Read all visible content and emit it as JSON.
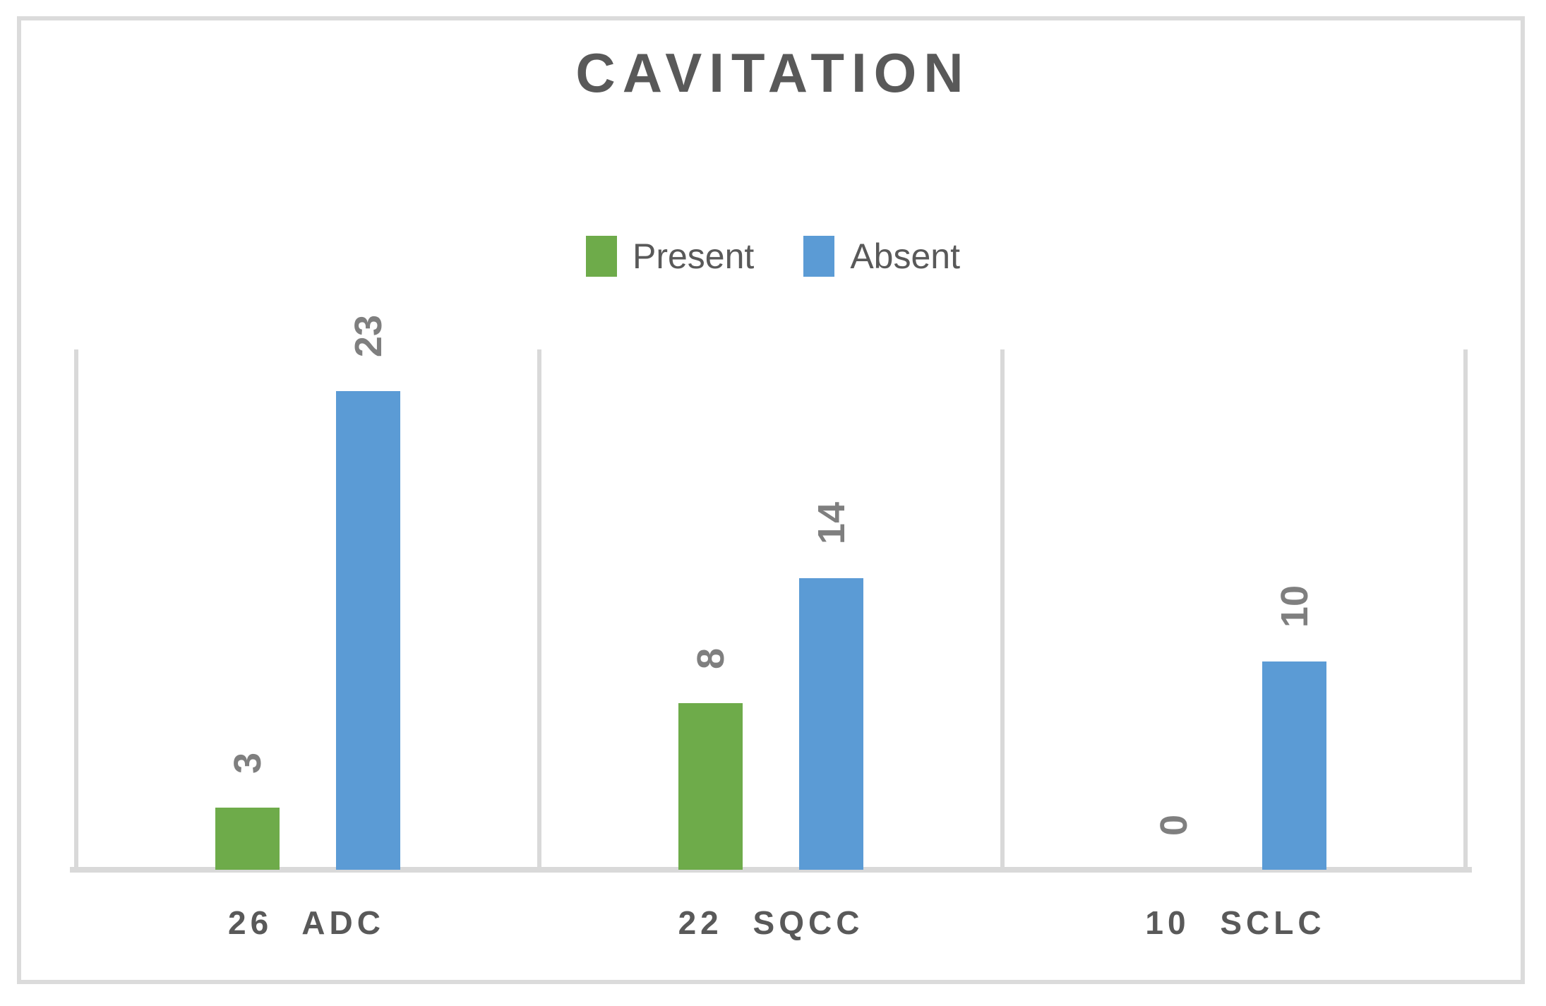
{
  "figure": {
    "title": "CAVITATION"
  },
  "chart_data": {
    "type": "bar",
    "title": "CAVITATION",
    "categories": [
      "26 ADC",
      "22 SQCC",
      "10 SCLC"
    ],
    "series": [
      {
        "name": "Present",
        "color": "#6eab4a",
        "values": [
          3,
          8,
          0
        ]
      },
      {
        "name": "Absent",
        "color": "#5b9bd5",
        "values": [
          23,
          14,
          10
        ]
      }
    ],
    "xlabel": "",
    "ylabel": "",
    "ylim": [
      0,
      25
    ],
    "grid": "vertical category separator lines only",
    "legend_position": "top-center",
    "data_labels": {
      "rotation": -90,
      "color": "#7f7f7f"
    },
    "axis_line_color": "#d9d9d9",
    "title_color": "#595959",
    "category_label_color": "#595959"
  }
}
